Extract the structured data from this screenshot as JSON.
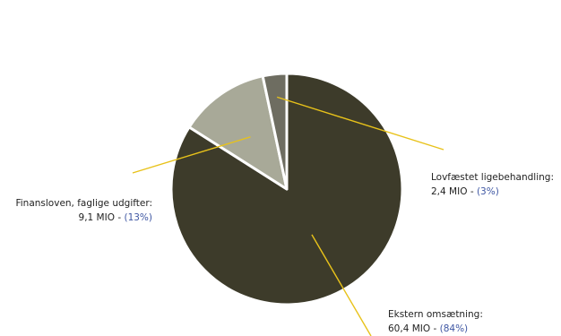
{
  "chart_data": {
    "type": "pie",
    "slices": [
      {
        "label": "Ekstern omsætning:",
        "value_text": "60,4 MIO",
        "value": 60.4,
        "percent_text": "(84%)",
        "percent": 84,
        "color": "#3d3b2a"
      },
      {
        "label": "Finansloven, faglige udgifter:",
        "value_text": "9,1 MIO",
        "value": 9.1,
        "percent_text": "(13%)",
        "percent": 13,
        "color": "#a8a998"
      },
      {
        "label": "Lovfæstet ligebehandling:",
        "value_text": "2,4 MIO",
        "value": 2.4,
        "percent_text": "(3%)",
        "percent": 3,
        "color": "#6e6d61"
      }
    ],
    "leader_color": "#e8c21a",
    "separator_color": "#ffffff"
  }
}
